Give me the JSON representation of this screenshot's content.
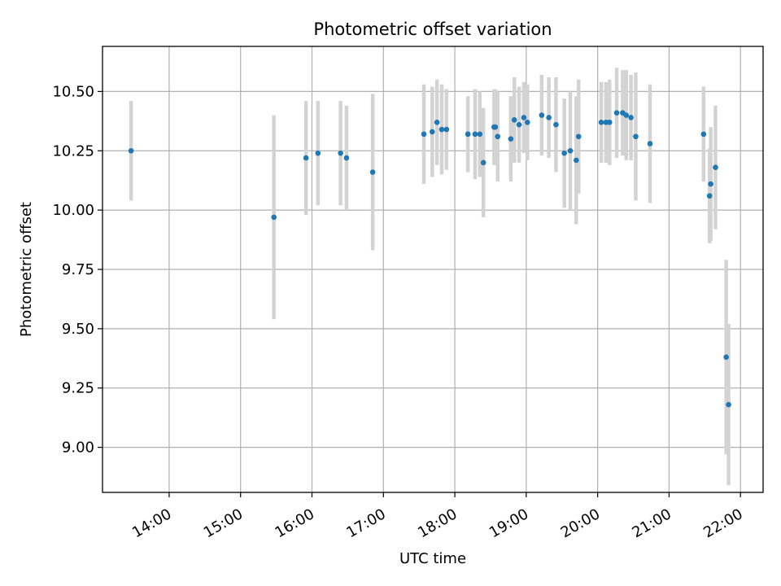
{
  "chart_data": {
    "type": "scatter",
    "title": "Photometric offset variation",
    "xlabel": "UTC time",
    "ylabel": "Photometric offset",
    "xlim": [
      "13:04",
      "22:19"
    ],
    "ylim": [
      8.81,
      10.69
    ],
    "grid": true,
    "x_ticks": [
      "14:00",
      "15:00",
      "16:00",
      "17:00",
      "18:00",
      "19:00",
      "20:00",
      "21:00",
      "22:00"
    ],
    "y_ticks": [
      "9.00",
      "9.25",
      "9.50",
      "9.75",
      "10.00",
      "10.25",
      "10.50"
    ],
    "colors": {
      "point": "#1f77b4",
      "errorbar": "#d3d3d3",
      "grid": "#b0b0b0",
      "axes": "#000000"
    },
    "series": [
      {
        "x": [
          "13:28",
          "15:28",
          "15:55",
          "16:05",
          "16:24",
          "16:29",
          "16:51",
          "17:34",
          "17:41",
          "17:45",
          "17:49",
          "17:53",
          "18:11",
          "18:11",
          "18:17",
          "18:21",
          "18:24",
          "18:33",
          "18:34",
          "18:36",
          "18:47",
          "18:50",
          "18:54",
          "18:58",
          "19:01",
          "19:13",
          "19:19",
          "19:25",
          "19:32",
          "19:37",
          "19:42",
          "19:44",
          "20:03",
          "20:07",
          "20:10",
          "20:16",
          "20:21",
          "20:24",
          "20:28",
          "20:32",
          "20:44",
          "21:29",
          "21:34",
          "21:35",
          "21:39",
          "21:48",
          "21:50"
        ],
        "y": [
          10.25,
          9.97,
          10.22,
          10.24,
          10.24,
          10.22,
          10.16,
          10.32,
          10.33,
          10.37,
          10.34,
          10.34,
          10.32,
          10.32,
          10.32,
          10.32,
          10.2,
          10.35,
          10.35,
          10.31,
          10.3,
          10.38,
          10.36,
          10.39,
          10.37,
          10.4,
          10.39,
          10.36,
          10.24,
          10.25,
          10.21,
          10.31,
          10.37,
          10.37,
          10.37,
          10.41,
          10.41,
          10.4,
          10.39,
          10.31,
          10.28,
          10.32,
          10.06,
          10.11,
          10.18,
          9.38,
          9.18
        ],
        "err": [
          0.21,
          0.43,
          0.24,
          0.22,
          0.22,
          0.22,
          0.33,
          0.21,
          0.19,
          0.18,
          0.19,
          0.17,
          0.16,
          0.16,
          0.19,
          0.18,
          0.23,
          0.16,
          0.16,
          0.19,
          0.18,
          0.18,
          0.16,
          0.15,
          0.16,
          0.17,
          0.17,
          0.2,
          0.23,
          0.25,
          0.27,
          0.24,
          0.17,
          0.17,
          0.18,
          0.19,
          0.18,
          0.19,
          0.18,
          0.27,
          0.25,
          0.2,
          0.2,
          0.24,
          0.26,
          0.41,
          0.34
        ]
      }
    ]
  }
}
